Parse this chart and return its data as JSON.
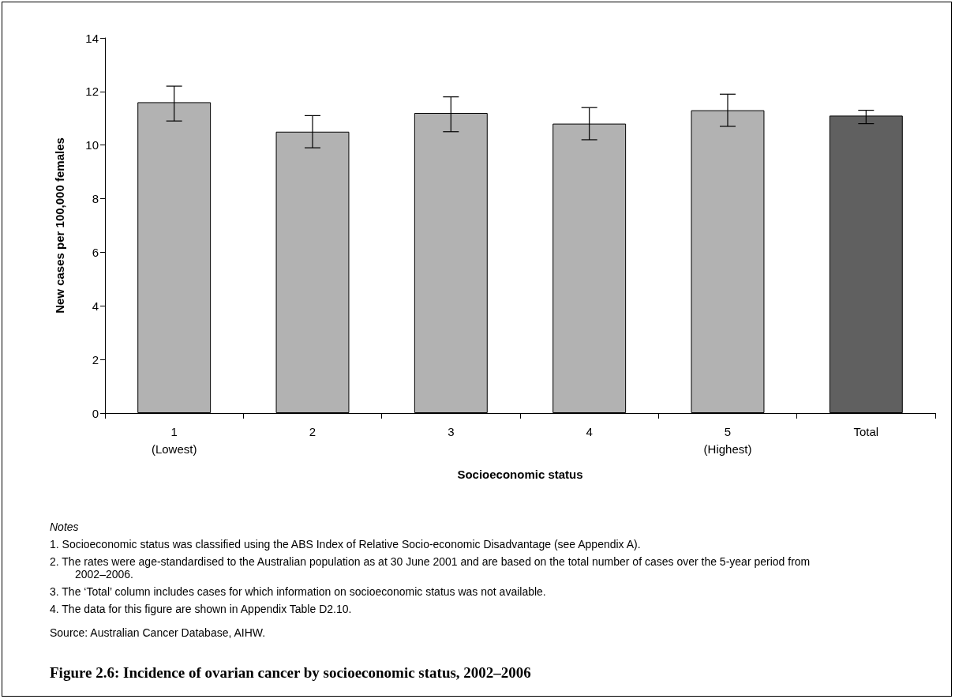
{
  "chart_data": {
    "type": "bar",
    "title": "Figure 2.6: Incidence of ovarian cancer by socioeconomic status, 2002–2006",
    "xlabel": "Socioeconomic status",
    "ylabel": "New cases per 100,000 females",
    "categories": [
      "1\n(Lowest)",
      "2",
      "3",
      "4",
      "5\n(Highest)",
      "Total"
    ],
    "values": [
      11.6,
      10.5,
      11.2,
      10.8,
      11.3,
      11.1
    ],
    "errors": [
      [
        10.9,
        12.2
      ],
      [
        9.9,
        11.1
      ],
      [
        10.5,
        11.8
      ],
      [
        10.2,
        11.4
      ],
      [
        10.7,
        11.9
      ],
      [
        10.8,
        11.3
      ]
    ],
    "colors": [
      "#b2b2b2",
      "#b2b2b2",
      "#b2b2b2",
      "#b2b2b2",
      "#b2b2b2",
      "#606060"
    ],
    "ylim": [
      0,
      14
    ],
    "yticks": [
      0,
      2,
      4,
      6,
      8,
      10,
      12,
      14
    ],
    "grid": false,
    "annotations": [
      "Notes",
      "1. Socioeconomic status was classified using the ABS Index of Relative Socio-economic Disadvantage (see Appendix A).",
      "2. The rates were age-standardised to the Australian population as at 30 June 2001 and are based on the total number of cases over the 5-year period from 2002–2006.",
      "3. The ‘Total’ column includes cases for which information on socioeconomic status was not available.",
      "4. The data for this figure are shown in Appendix Table D2.10.",
      "Source: Australian Cancer Database, AIHW."
    ]
  }
}
